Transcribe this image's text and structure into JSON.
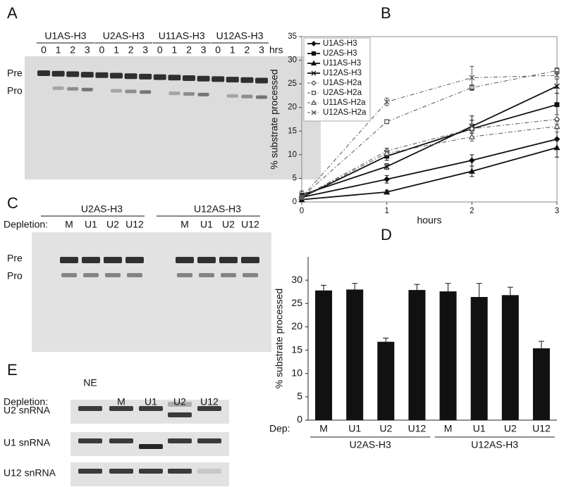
{
  "panel_labels": [
    "A",
    "B",
    "C",
    "D",
    "E"
  ],
  "gel_a": {
    "constructs": [
      "U1AS-H3",
      "U2AS-H3",
      "U11AS-H3",
      "U12AS-H3"
    ],
    "timepoints": [
      "0",
      "1",
      "2",
      "3"
    ],
    "time_unit": "hrs",
    "bands": [
      "Pre",
      "Pro"
    ]
  },
  "gel_c": {
    "constructs": [
      "U2AS-H3",
      "U12AS-H3"
    ],
    "depletion_label": "Depletion:",
    "lanes": [
      "M",
      "U1",
      "U2",
      "U12"
    ],
    "bands": [
      "Pre",
      "Pro"
    ]
  },
  "gel_e": {
    "depletion_label": "Depletion:",
    "lanes": [
      "NE",
      "M",
      "U1",
      "U2",
      "U12"
    ],
    "rows": [
      "U2 snRNA",
      "U1 snRNA",
      "U12 snRNA"
    ]
  },
  "chart_data": [
    {
      "type": "line",
      "ylabel": "% substrate processed",
      "xlabel": "hours",
      "x": [
        0,
        1,
        2,
        3
      ],
      "xlim": [
        0,
        3
      ],
      "xticks": [
        0,
        1,
        2,
        3
      ],
      "ylim": [
        0,
        35
      ],
      "yticks": [
        0,
        5,
        10,
        15,
        20,
        25,
        30,
        35
      ],
      "legend": "upper-left",
      "series": [
        {
          "name": "U1AS-H3",
          "color": "#111111",
          "line_style": "solid",
          "marker": "diamond",
          "filled": true,
          "values": [
            1,
            4.8,
            8.8,
            13.3
          ],
          "errors": [
            0.8,
            0.8,
            1.2,
            2.2
          ]
        },
        {
          "name": "U2AS-H3",
          "color": "#111111",
          "line_style": "solid",
          "marker": "square",
          "filled": true,
          "values": [
            1,
            9.7,
            15.5,
            20.6
          ],
          "errors": [
            0.6,
            0.9,
            1.8,
            3.5
          ]
        },
        {
          "name": "U11AS-H3",
          "color": "#111111",
          "line_style": "solid",
          "marker": "triangle",
          "filled": true,
          "values": [
            0.5,
            2.1,
            6.5,
            11.5
          ],
          "errors": [
            0.4,
            0.4,
            1.1,
            2
          ]
        },
        {
          "name": "U12AS-H3",
          "color": "#111111",
          "line_style": "solid",
          "marker": "x",
          "filled": true,
          "values": [
            1.5,
            7.5,
            16,
            24.5
          ],
          "errors": [
            0.8,
            0.6,
            2.2,
            1.5
          ]
        },
        {
          "name": "U1AS-H2a",
          "color": "#555555",
          "line_style": "dashdot",
          "marker": "diamond",
          "filled": false,
          "values": [
            1,
            10.8,
            15.5,
            17.5
          ],
          "errors": [
            0.4,
            0.6,
            1,
            1
          ]
        },
        {
          "name": "U2AS-H2a",
          "color": "#555555",
          "line_style": "dashdot",
          "marker": "square",
          "filled": false,
          "values": [
            1,
            17,
            24.2,
            27.8
          ],
          "errors": [
            0.4,
            0.4,
            0.6,
            0.6
          ]
        },
        {
          "name": "U11AS-H2a",
          "color": "#555555",
          "line_style": "dashdot",
          "marker": "triangle",
          "filled": false,
          "values": [
            1,
            10.3,
            13.8,
            16
          ],
          "errors": [
            0.4,
            0.5,
            0.9,
            1.2
          ]
        },
        {
          "name": "U12AS-H2a",
          "color": "#555555",
          "line_style": "dashdot",
          "marker": "x",
          "filled": false,
          "values": [
            1,
            21.2,
            26.3,
            26.8
          ],
          "errors": [
            0.4,
            0.8,
            2.4,
            0.8
          ]
        }
      ]
    },
    {
      "type": "bar",
      "ylabel": "% substrate processed",
      "x_prefix": "Dep:",
      "categories": [
        "M",
        "U1",
        "U2",
        "U12",
        "M",
        "U1",
        "U2",
        "U12"
      ],
      "groups": [
        "U2AS-H3",
        "U12AS-H3"
      ],
      "values": [
        27.8,
        28,
        16.8,
        27.9,
        27.6,
        26.4,
        26.8,
        15.4
      ],
      "errors": [
        1.1,
        1.3,
        0.8,
        1.2,
        1.7,
        2.9,
        1.7,
        1.5
      ],
      "color": "#111111",
      "ylim": [
        0,
        35
      ],
      "yticks": [
        0,
        5,
        10,
        15,
        20,
        25,
        30
      ]
    }
  ]
}
